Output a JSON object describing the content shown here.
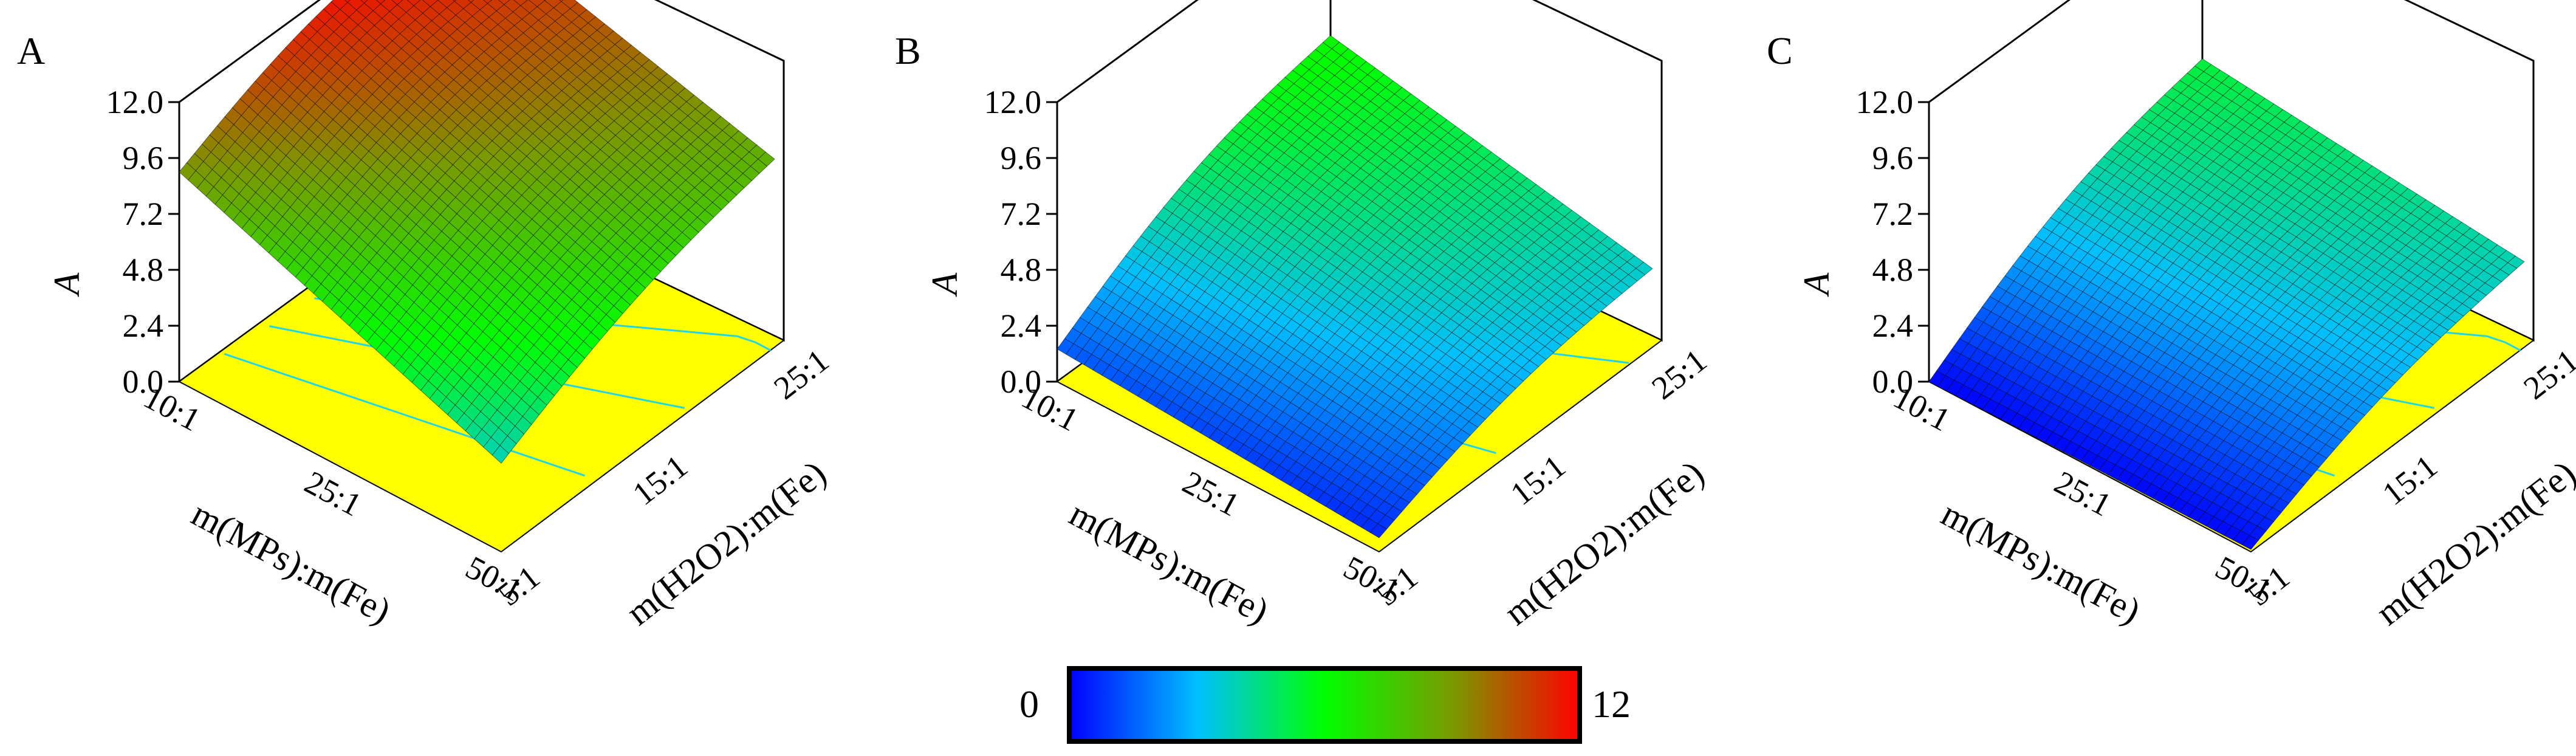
{
  "colors": {
    "floor": "#ffff00",
    "contour": "#1fd6e6",
    "mesh": "#000000",
    "colormap": [
      "#0000ff",
      "#00bfff",
      "#00ff00",
      "#7a9a00",
      "#ff0000"
    ]
  },
  "chart_data": [
    {
      "type": "surface3d",
      "panel": "A",
      "zlabel": "A",
      "xlabel": "m(MPs):m(Fe)",
      "ylabel": "m(H2O2):m(Fe)",
      "xticks": [
        "10:1",
        "25:1",
        "50:1"
      ],
      "yticks": [
        "5:1",
        "15:1",
        "25:1"
      ],
      "zticks": [
        "0.0",
        "2.4",
        "4.8",
        "7.2",
        "9.6",
        "12.0"
      ],
      "zlim": [
        0,
        12
      ],
      "corner_values": {
        "x_low_y_high": 12.0,
        "x_low_y_low": 9.0,
        "x_high_y_high": 8.3,
        "x_high_y_low": 3.8
      },
      "floor_contours": 3
    },
    {
      "type": "surface3d",
      "panel": "B",
      "zlabel": "A",
      "xlabel": "m(MPs):m(Fe)",
      "ylabel": "m(H2O2):m(Fe)",
      "xticks": [
        "10:1",
        "25:1",
        "50:1"
      ],
      "yticks": [
        "5:1",
        "15:1",
        "25:1"
      ],
      "zticks": [
        "0.0",
        "2.4",
        "4.8",
        "7.2",
        "9.6",
        "12.0"
      ],
      "zlim": [
        0,
        12
      ],
      "corner_values": {
        "x_low_y_high": 6.3,
        "x_low_y_low": 1.4,
        "x_high_y_high": 3.6,
        "x_high_y_low": 0.6
      },
      "floor_contours": 2
    },
    {
      "type": "surface3d",
      "panel": "C",
      "zlabel": "A",
      "xlabel": "m(MPs):m(Fe)",
      "ylabel": "m(H2O2):m(Fe)",
      "xticks": [
        "10:1",
        "25:1",
        "50:1"
      ],
      "yticks": [
        "5:1",
        "15:1",
        "25:1"
      ],
      "zticks": [
        "0.0",
        "2.4",
        "4.8",
        "7.2",
        "9.6",
        "12.0"
      ],
      "zlim": [
        0,
        12
      ],
      "corner_values": {
        "x_low_y_high": 5.3,
        "x_low_y_low": 0.0,
        "x_high_y_high": 3.9,
        "x_high_y_low": 0.1
      },
      "floor_contours": 3
    }
  ],
  "colorbar": {
    "min_label": "0",
    "max_label": "12",
    "min": 0,
    "max": 12
  }
}
